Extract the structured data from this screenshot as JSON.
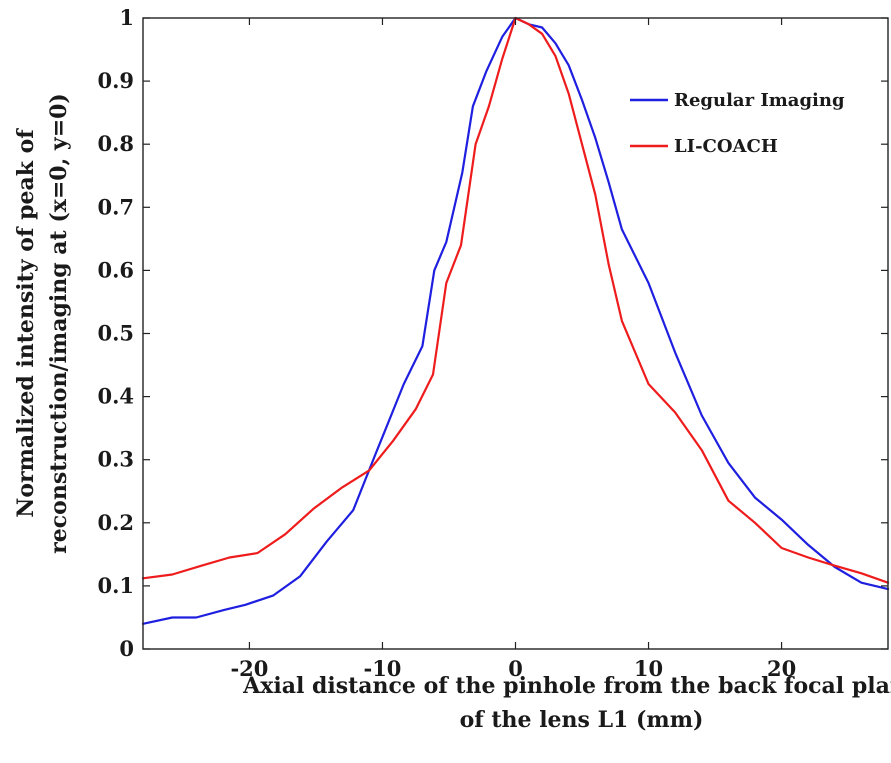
{
  "chart_data": {
    "type": "line",
    "xlabel": [
      "Axial distance of the pinhole from the back focal plane",
      "of the lens L1 (mm)"
    ],
    "ylabel": [
      "Normalized intensity of peak of",
      "reconstruction/imaging at (x=0, y=0)"
    ],
    "xlim": [
      -28,
      28
    ],
    "ylim": [
      0,
      1
    ],
    "xticks": [
      -20,
      -10,
      0,
      10,
      20
    ],
    "yticks": [
      0,
      0.1,
      0.2,
      0.3,
      0.4,
      0.5,
      0.6,
      0.7,
      0.8,
      0.9,
      1
    ],
    "xtick_labels": [
      "-20",
      "-10",
      "0",
      "10",
      "20"
    ],
    "ytick_labels": [
      "0",
      "0.1",
      "0.2",
      "0.3",
      "0.4",
      "0.5",
      "0.6",
      "0.7",
      "0.8",
      "0.9",
      "1"
    ],
    "grid": false,
    "legend_position": "top-right",
    "series": [
      {
        "name": "Regular Imaging",
        "color": "#1f1fe0",
        "x": [
          -28,
          -25.8,
          -24,
          -21.9,
          -20.3,
          -18.2,
          -16.2,
          -14.2,
          -12.2,
          -10.5,
          -8.4,
          -7,
          -6.1,
          -5.2,
          -4,
          -3.2,
          -2.2,
          -1,
          0,
          1,
          2,
          3,
          4,
          5,
          6,
          7,
          8,
          10,
          12,
          14,
          16,
          18,
          20,
          22,
          24,
          26,
          28
        ],
        "y": [
          0.04,
          0.05,
          0.05,
          0.062,
          0.07,
          0.085,
          0.115,
          0.17,
          0.22,
          0.31,
          0.42,
          0.48,
          0.6,
          0.645,
          0.755,
          0.86,
          0.915,
          0.97,
          1.0,
          0.99,
          0.985,
          0.96,
          0.925,
          0.87,
          0.81,
          0.74,
          0.665,
          0.58,
          0.47,
          0.37,
          0.295,
          0.24,
          0.205,
          0.165,
          0.13,
          0.105,
          0.095
        ]
      },
      {
        "name": "LI-COACH",
        "color": "#ee1c1c",
        "x": [
          -28,
          -25.8,
          -23.6,
          -21.5,
          -19.4,
          -17.3,
          -15.2,
          -13.1,
          -11,
          -9.2,
          -7.5,
          -6.2,
          -5.2,
          -4.1,
          -3,
          -2,
          -1,
          0,
          1,
          2,
          3,
          4,
          5,
          6,
          7,
          8,
          10,
          12,
          14,
          16,
          18,
          20,
          22,
          24,
          26,
          28
        ],
        "y": [
          0.112,
          0.118,
          0.132,
          0.145,
          0.152,
          0.182,
          0.222,
          0.255,
          0.283,
          0.33,
          0.38,
          0.435,
          0.58,
          0.64,
          0.8,
          0.86,
          0.935,
          1.0,
          0.99,
          0.975,
          0.94,
          0.88,
          0.8,
          0.72,
          0.61,
          0.52,
          0.42,
          0.375,
          0.315,
          0.235,
          0.2,
          0.16,
          0.145,
          0.132,
          0.12,
          0.105
        ]
      }
    ]
  }
}
